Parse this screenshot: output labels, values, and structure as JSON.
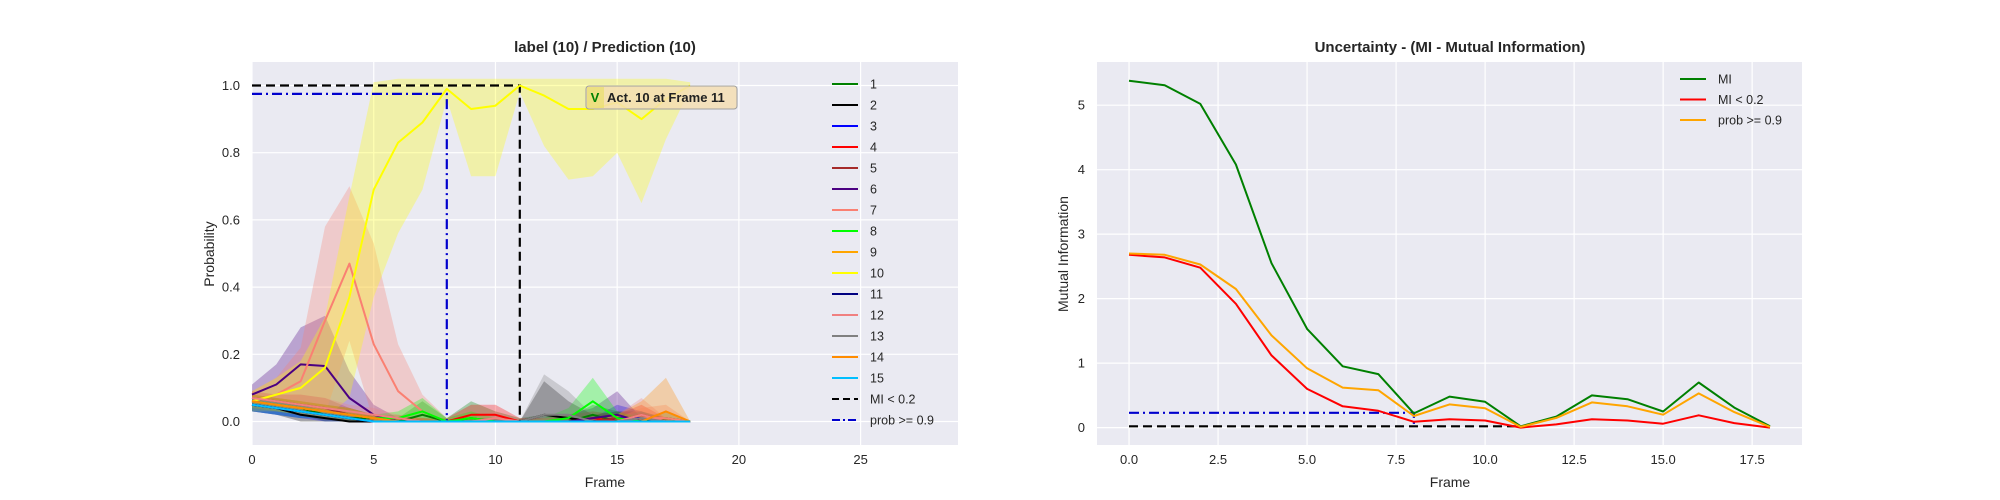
{
  "chart_data": [
    {
      "type": "line",
      "title": "label (10) / Prediction (10)",
      "xlabel": "Frame",
      "ylabel": "Probability",
      "xlim": [
        0,
        29
      ],
      "ylim": [
        -0.07,
        1.07
      ],
      "xticks": [
        "0",
        "5",
        "10",
        "15",
        "20",
        "25"
      ],
      "yticks": [
        "0.0",
        "0.2",
        "0.4",
        "0.6",
        "0.8",
        "1.0"
      ],
      "grid": true,
      "legend_position": "right",
      "x": [
        0,
        1,
        2,
        3,
        4,
        5,
        6,
        7,
        8,
        9,
        10,
        11,
        12,
        13,
        14,
        15,
        16,
        17,
        18
      ],
      "series": [
        {
          "name": "1",
          "color": "#008000",
          "values": [
            0.06,
            0.05,
            0.04,
            0.02,
            0.01,
            0.01,
            0.0,
            0.02,
            0.0,
            0.01,
            0.0,
            0.0,
            0.0,
            0.0,
            0.02,
            0.0,
            0.0,
            0.01,
            0.0
          ],
          "band": [
            0.02,
            0.02,
            0.02,
            0.02,
            0.01,
            0.01,
            0.01,
            0.04,
            0.01,
            0.05,
            0.03,
            0.01,
            0.02,
            0.01,
            0.03,
            0.03,
            0.01,
            0.02,
            0.0
          ]
        },
        {
          "name": "2",
          "color": "#000000",
          "values": [
            0.05,
            0.04,
            0.02,
            0.01,
            0.0,
            0.0,
            0.0,
            0.0,
            0.0,
            0.0,
            0.0,
            0.0,
            0.02,
            0.01,
            0.0,
            0.01,
            0.01,
            0.0,
            0.0
          ],
          "band": [
            0.02,
            0.02,
            0.02,
            0.01,
            0.01,
            0.0,
            0.0,
            0.01,
            0.0,
            0.01,
            0.01,
            0.0,
            0.1,
            0.05,
            0.02,
            0.02,
            0.02,
            0.01,
            0.0
          ]
        },
        {
          "name": "3",
          "color": "#0000ff",
          "values": [
            0.05,
            0.04,
            0.03,
            0.02,
            0.01,
            0.0,
            0.0,
            0.0,
            0.0,
            0.0,
            0.0,
            0.0,
            0.0,
            0.0,
            0.0,
            0.01,
            0.01,
            0.0,
            0.0
          ],
          "band": [
            0.02,
            0.02,
            0.02,
            0.02,
            0.01,
            0.01,
            0.0,
            0.0,
            0.0,
            0.0,
            0.01,
            0.0,
            0.0,
            0.01,
            0.01,
            0.04,
            0.02,
            0.0,
            0.0
          ]
        },
        {
          "name": "4",
          "color": "#ff0000",
          "values": [
            0.06,
            0.05,
            0.04,
            0.03,
            0.02,
            0.01,
            0.01,
            0.0,
            0.0,
            0.02,
            0.02,
            0.0,
            0.0,
            0.0,
            0.01,
            0.0,
            0.02,
            0.0,
            0.0
          ],
          "band": [
            0.02,
            0.02,
            0.02,
            0.02,
            0.02,
            0.01,
            0.01,
            0.01,
            0.01,
            0.03,
            0.03,
            0.01,
            0.01,
            0.02,
            0.02,
            0.02,
            0.03,
            0.01,
            0.0
          ]
        },
        {
          "name": "5",
          "color": "#a52a2a",
          "values": [
            0.07,
            0.06,
            0.05,
            0.04,
            0.02,
            0.01,
            0.0,
            0.0,
            0.0,
            0.0,
            0.0,
            0.0,
            0.0,
            0.0,
            0.0,
            0.01,
            0.0,
            0.0,
            0.0
          ],
          "band": [
            0.02,
            0.02,
            0.03,
            0.03,
            0.02,
            0.01,
            0.01,
            0.0,
            0.0,
            0.0,
            0.0,
            0.0,
            0.0,
            0.01,
            0.01,
            0.02,
            0.01,
            0.0,
            0.0
          ]
        },
        {
          "name": "6",
          "color": "#4b0082",
          "values": [
            0.08,
            0.11,
            0.17,
            0.165,
            0.07,
            0.02,
            0.0,
            0.0,
            0.0,
            0.0,
            0.0,
            0.0,
            0.0,
            0.0,
            0.01,
            0.02,
            0.0,
            0.0,
            0.0
          ],
          "band": [
            0.03,
            0.06,
            0.11,
            0.15,
            0.08,
            0.03,
            0.01,
            0.0,
            0.0,
            0.0,
            0.0,
            0.0,
            0.0,
            0.02,
            0.03,
            0.07,
            0.01,
            0.0,
            0.0
          ]
        },
        {
          "name": "7",
          "color": "#fa8072",
          "values": [
            0.06,
            0.08,
            0.12,
            0.3,
            0.47,
            0.23,
            0.09,
            0.03,
            0.0,
            0.0,
            0.0,
            0.0,
            0.0,
            0.0,
            0.0,
            0.0,
            0.01,
            0.01,
            0.0
          ],
          "band": [
            0.03,
            0.05,
            0.1,
            0.28,
            0.23,
            0.3,
            0.14,
            0.05,
            0.01,
            0.01,
            0.0,
            0.0,
            0.0,
            0.0,
            0.0,
            0.01,
            0.03,
            0.04,
            0.0
          ]
        },
        {
          "name": "8",
          "color": "#00ff00",
          "values": [
            0.06,
            0.05,
            0.04,
            0.03,
            0.02,
            0.01,
            0.01,
            0.03,
            0.0,
            0.01,
            0.0,
            0.0,
            0.0,
            0.01,
            0.06,
            0.01,
            0.0,
            0.0,
            0.0
          ],
          "band": [
            0.02,
            0.02,
            0.02,
            0.02,
            0.02,
            0.01,
            0.02,
            0.04,
            0.01,
            0.02,
            0.01,
            0.0,
            0.01,
            0.03,
            0.07,
            0.02,
            0.01,
            0.0,
            0.0
          ]
        },
        {
          "name": "9",
          "color": "#ffa500",
          "values": [
            0.06,
            0.05,
            0.04,
            0.03,
            0.02,
            0.01,
            0.0,
            0.0,
            0.0,
            0.0,
            0.0,
            0.0,
            0.0,
            0.0,
            0.0,
            0.0,
            0.0,
            0.0,
            0.0
          ],
          "band": [
            0.02,
            0.02,
            0.02,
            0.02,
            0.02,
            0.01,
            0.01,
            0.0,
            0.0,
            0.0,
            0.0,
            0.0,
            0.0,
            0.0,
            0.0,
            0.0,
            0.0,
            0.0,
            0.0
          ]
        },
        {
          "name": "10",
          "color": "#ffff00",
          "values": [
            0.06,
            0.08,
            0.1,
            0.16,
            0.37,
            0.69,
            0.83,
            0.89,
            0.99,
            0.93,
            0.94,
            1.0,
            0.97,
            0.93,
            0.93,
            0.95,
            0.9,
            0.96,
            1.0
          ],
          "band": [
            0.03,
            0.05,
            0.08,
            0.15,
            0.3,
            0.32,
            0.27,
            0.2,
            0.03,
            0.2,
            0.21,
            0.02,
            0.15,
            0.21,
            0.2,
            0.15,
            0.25,
            0.12,
            0.01
          ]
        },
        {
          "name": "11",
          "color": "#000080",
          "values": [
            0.05,
            0.04,
            0.03,
            0.02,
            0.01,
            0.0,
            0.0,
            0.0,
            0.0,
            0.0,
            0.0,
            0.0,
            0.0,
            0.0,
            0.0,
            0.0,
            0.0,
            0.0,
            0.0
          ],
          "band": [
            0.02,
            0.02,
            0.02,
            0.01,
            0.01,
            0.0,
            0.0,
            0.0,
            0.0,
            0.0,
            0.0,
            0.0,
            0.0,
            0.0,
            0.0,
            0.0,
            0.0,
            0.0,
            0.0
          ]
        },
        {
          "name": "12",
          "color": "#f08080",
          "values": [
            0.07,
            0.06,
            0.05,
            0.04,
            0.03,
            0.02,
            0.01,
            0.0,
            0.0,
            0.0,
            0.01,
            0.0,
            0.0,
            0.0,
            0.0,
            0.0,
            0.02,
            0.0,
            0.0
          ],
          "band": [
            0.02,
            0.02,
            0.03,
            0.03,
            0.02,
            0.02,
            0.01,
            0.01,
            0.0,
            0.01,
            0.02,
            0.0,
            0.01,
            0.01,
            0.01,
            0.02,
            0.05,
            0.01,
            0.0
          ]
        },
        {
          "name": "13",
          "color": "#808080",
          "values": [
            0.06,
            0.05,
            0.04,
            0.03,
            0.02,
            0.01,
            0.0,
            0.0,
            0.0,
            0.0,
            0.0,
            0.0,
            0.02,
            0.02,
            0.0,
            0.0,
            0.01,
            0.0,
            0.0
          ],
          "band": [
            0.02,
            0.02,
            0.02,
            0.02,
            0.02,
            0.01,
            0.01,
            0.01,
            0.0,
            0.01,
            0.01,
            0.0,
            0.12,
            0.07,
            0.02,
            0.01,
            0.02,
            0.01,
            0.0
          ]
        },
        {
          "name": "14",
          "color": "#ff8c00",
          "values": [
            0.06,
            0.05,
            0.04,
            0.03,
            0.02,
            0.01,
            0.0,
            0.0,
            0.0,
            0.0,
            0.0,
            0.0,
            0.0,
            0.0,
            0.0,
            0.0,
            0.0,
            0.03,
            0.0
          ],
          "band": [
            0.02,
            0.02,
            0.02,
            0.02,
            0.02,
            0.01,
            0.01,
            0.01,
            0.0,
            0.0,
            0.0,
            0.0,
            0.0,
            0.0,
            0.0,
            0.02,
            0.06,
            0.1,
            0.0
          ]
        },
        {
          "name": "15",
          "color": "#00bfff",
          "values": [
            0.05,
            0.04,
            0.03,
            0.02,
            0.01,
            0.0,
            0.0,
            0.0,
            0.0,
            0.0,
            0.0,
            0.0,
            0.0,
            0.0,
            0.0,
            0.0,
            0.0,
            0.0,
            0.0
          ],
          "band": [
            0.02,
            0.02,
            0.02,
            0.01,
            0.01,
            0.0,
            0.0,
            0.0,
            0.0,
            0.0,
            0.0,
            0.0,
            0.0,
            0.0,
            0.0,
            0.0,
            0.0,
            0.0,
            0.0
          ]
        }
      ],
      "reference_lines": [
        {
          "name": "MI < 0.2",
          "color": "#000000",
          "style": "dashed",
          "points": [
            [
              0,
              1.0
            ],
            [
              11,
              1.0
            ],
            [
              11,
              0.0
            ]
          ]
        },
        {
          "name": "prob >= 0.9",
          "color": "#0000cd",
          "style": "dashdot",
          "points": [
            [
              0,
              0.975
            ],
            [
              8,
              0.975
            ],
            [
              8,
              0.0
            ]
          ]
        }
      ],
      "annotation": {
        "mark": "V",
        "mark_color": "#008000",
        "text": "Act. 10 at Frame 11",
        "x": 14,
        "y": 0.945
      }
    },
    {
      "type": "line",
      "title": "Uncertainty - (MI - Mutual Information)",
      "xlabel": "Frame",
      "ylabel": "Mutual Information",
      "xlim": [
        -0.9,
        18.9
      ],
      "ylim": [
        -0.27,
        5.67
      ],
      "xticks": [
        "0.0",
        "2.5",
        "5.0",
        "7.5",
        "10.0",
        "12.5",
        "15.0",
        "17.5"
      ],
      "xtick_values": [
        0,
        2.5,
        5,
        7.5,
        10,
        12.5,
        15,
        17.5
      ],
      "yticks": [
        "0",
        "1",
        "2",
        "3",
        "4",
        "5"
      ],
      "grid": true,
      "legend_position": "top-right",
      "x": [
        0,
        1,
        2,
        3,
        4,
        5,
        6,
        7,
        8,
        9,
        10,
        11,
        12,
        13,
        14,
        15,
        16,
        17,
        18
      ],
      "series": [
        {
          "name": "MI",
          "color": "#008000",
          "values": [
            5.38,
            5.31,
            5.02,
            4.08,
            2.55,
            1.53,
            0.95,
            0.83,
            0.22,
            0.48,
            0.4,
            0.02,
            0.17,
            0.5,
            0.44,
            0.25,
            0.7,
            0.31,
            0.02
          ]
        },
        {
          "name": "MI < 0.2",
          "color": "#ff0000",
          "values": [
            2.68,
            2.64,
            2.48,
            1.92,
            1.12,
            0.6,
            0.33,
            0.26,
            0.09,
            0.13,
            0.11,
            0.0,
            0.05,
            0.13,
            0.11,
            0.06,
            0.19,
            0.07,
            0.0
          ]
        },
        {
          "name": "prob >= 0.9",
          "color": "#ffa500",
          "values": [
            2.7,
            2.68,
            2.53,
            2.15,
            1.43,
            0.92,
            0.62,
            0.58,
            0.18,
            0.36,
            0.3,
            0.01,
            0.15,
            0.39,
            0.33,
            0.2,
            0.53,
            0.24,
            0.01
          ]
        }
      ],
      "reference_lines": [
        {
          "color": "#000000",
          "style": "dashed",
          "points": [
            [
              0,
              0.02
            ],
            [
              11,
              0.02
            ]
          ]
        },
        {
          "color": "#0000cd",
          "style": "dashdot",
          "points": [
            [
              0,
              0.23
            ],
            [
              8,
              0.23
            ],
            [
              8,
              0.02
            ]
          ]
        }
      ]
    }
  ]
}
